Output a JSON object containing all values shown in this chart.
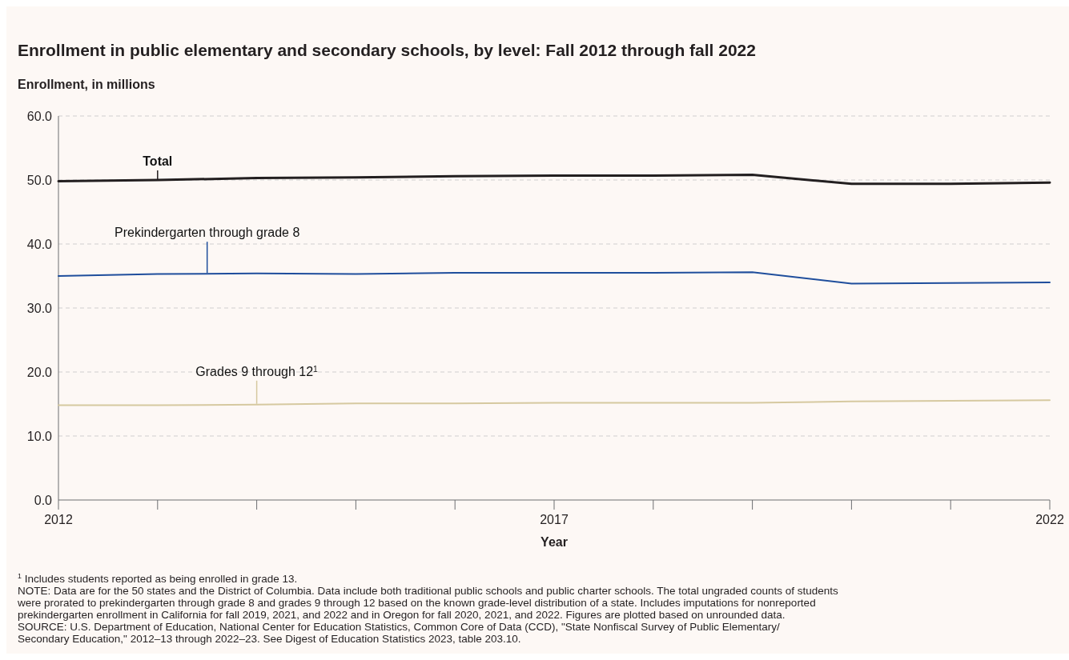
{
  "chart_data": {
    "type": "line",
    "title": "Enrollment in public elementary and secondary schools, by level: Fall 2012 through fall 2022",
    "ylabel": "Enrollment, in millions",
    "xlabel": "Year",
    "x": [
      2012,
      2013,
      2014,
      2015,
      2016,
      2017,
      2018,
      2019,
      2020,
      2021,
      2022
    ],
    "series": [
      {
        "name": "Total",
        "color": "#231f20",
        "values": [
          49.8,
          50.0,
          50.3,
          50.4,
          50.6,
          50.7,
          50.7,
          50.8,
          49.4,
          49.4,
          49.6
        ]
      },
      {
        "name": "Prekindergarten through grade 8",
        "color": "#1f4e9c",
        "values": [
          35.0,
          35.3,
          35.4,
          35.3,
          35.5,
          35.5,
          35.5,
          35.6,
          33.8,
          33.9,
          34.0
        ]
      },
      {
        "name": "Grades 9 through 12$^{1}$",
        "color": "#d6c9a0",
        "values": [
          14.8,
          14.8,
          14.9,
          15.1,
          15.1,
          15.2,
          15.2,
          15.2,
          15.4,
          15.5,
          15.6
        ]
      }
    ],
    "xlim": [
      2012,
      2022
    ],
    "xticks": [
      2012,
      {
        "value": 2013,
        "label": null
      },
      {
        "value": 2014,
        "label": null
      },
      {
        "value": 2015,
        "label": null
      },
      {
        "value": 2016,
        "label": null
      },
      2017,
      {
        "value": 2018,
        "label": null
      },
      {
        "value": 2019,
        "label": null
      },
      {
        "value": 2020,
        "label": null
      },
      {
        "value": 2021,
        "label": null
      },
      2022
    ],
    "ylim": [
      0,
      60
    ],
    "yticks": [
      {
        "value": 0,
        "label": "0.0"
      },
      {
        "value": 10,
        "label": "10.0"
      },
      {
        "value": 20,
        "label": "20.0"
      },
      {
        "value": 30,
        "label": "30.0"
      },
      {
        "value": 40,
        "label": "40.0"
      },
      {
        "value": 50,
        "label": "50.0"
      },
      {
        "value": 60,
        "label": "60.0"
      }
    ],
    "grid": "y",
    "marker": "none",
    "line_style": "solid",
    "annotations": [
      "$^{1}$ Includes students reported as being enrolled in grade 13.",
      "NOTE: Data are for the 50 states and the District of Columbia. Data include both traditional public schools and public charter schools. The total ungraded counts of students",
      "were prorated to prekindergarten through grade 8 and grades 9 through 12 based on the known grade-level distribution of a state. Includes imputations for nonreported",
      "prekindergarten enrollment in California for fall 2019, 2021, and 2022 and in Oregon for fall 2020, 2021, and 2022. Figures are plotted based on unrounded data.",
      "SOURCE: U.S. Department of Education, National Center for Education Statistics, Common Core of Data (CCD), \"State Nonfiscal Survey of Public Elementary/",
      "Secondary Education,\" 2012–13 through 2022–23. See Digest of Education Statistics 2023, table 203.10."
    ]
  }
}
